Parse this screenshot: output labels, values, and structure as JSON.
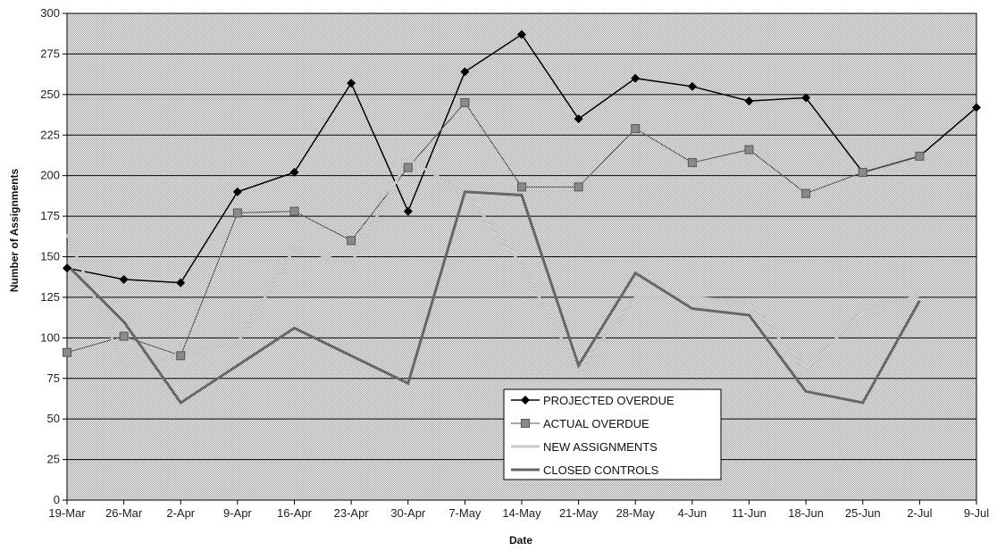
{
  "chart_data": {
    "type": "line",
    "title": "",
    "xlabel": "Date",
    "ylabel": "Number of Assignments",
    "ylim": [
      0,
      300
    ],
    "ytick_step": 25,
    "grid": true,
    "legend_position": "bottom-center",
    "categories": [
      "19-Mar",
      "26-Mar",
      "2-Apr",
      "9-Apr",
      "16-Apr",
      "23-Apr",
      "30-Apr",
      "7-May",
      "14-May",
      "21-May",
      "28-May",
      "4-Jun",
      "11-Jun",
      "18-Jun",
      "25-Jun",
      "2-Jul",
      "9-Jul"
    ],
    "series": [
      {
        "name": "PROJECTED OVERDUE",
        "color": "#000000",
        "marker": "diamond",
        "values": [
          143,
          136,
          134,
          190,
          202,
          257,
          178,
          264,
          287,
          235,
          260,
          255,
          246,
          248,
          202,
          212,
          242
        ]
      },
      {
        "name": "ACTUAL OVERDUE",
        "color": "#555555",
        "marker": "square",
        "values": [
          91,
          101,
          89,
          177,
          178,
          160,
          205,
          245,
          193,
          193,
          229,
          208,
          216,
          189,
          202,
          212,
          null
        ]
      },
      {
        "name": "NEW ASSIGNMENTS",
        "color": "#c8c8c8",
        "marker": "none",
        "values": [
          164,
          83,
          90,
          97,
          155,
          146,
          210,
          190,
          145,
          80,
          125,
          125,
          122,
          80,
          117,
          126,
          null
        ]
      },
      {
        "name": "CLOSED CONTROLS",
        "color": "#666666",
        "marker": "none",
        "values": [
          145,
          110,
          60,
          83,
          106,
          89,
          72,
          190,
          188,
          83,
          140,
          118,
          114,
          67,
          60,
          123,
          null
        ]
      }
    ]
  }
}
